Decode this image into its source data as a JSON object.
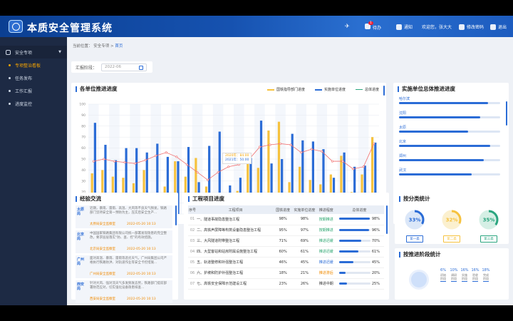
{
  "header": {
    "title": "本质安全管理系统",
    "todo": "待办",
    "todo_badge": "1",
    "notice": "通知",
    "welcome": "欢迎您，张大大",
    "change_password": "修改密码",
    "logout": "退出"
  },
  "sidebar": {
    "group": "安全专项",
    "items": [
      "专项整治看板",
      "任务发布",
      "工作汇报",
      "进度监控"
    ]
  },
  "breadcrumb": {
    "label": "当前位置：",
    "path": "安全专项 > ",
    "current": "首页"
  },
  "filter": {
    "label": "汇报阶段：",
    "placeholder": "2022-06"
  },
  "progress_panel": {
    "title": "各单位推进进度",
    "tooltip_line1": "2020年：84.00",
    "tooltip_line2": "2021年：50.00"
  },
  "chart_data": {
    "type": "bar",
    "categories": [
      "1",
      "2",
      "3",
      "4",
      "5",
      "6",
      "7",
      "8",
      "9",
      "10",
      "11",
      "12",
      "13",
      "14",
      "15",
      "16",
      "17",
      "18",
      "19",
      "20",
      "21",
      "22",
      "23",
      "24",
      "25",
      "26",
      "27",
      "28"
    ],
    "series": [
      {
        "name": "国铁指导部门进度",
        "type": "bar",
        "color": "#f6c23e",
        "values": [
          37,
          40,
          34,
          33,
          28,
          40,
          12,
          25,
          48,
          34,
          51,
          25,
          16,
          4,
          21,
          52,
          42,
          76,
          84,
          29,
          43,
          31,
          27,
          36,
          53,
          20,
          36,
          70
        ]
      },
      {
        "name": "实施单位进度",
        "type": "bar",
        "color": "#2b6cd6",
        "values": [
          83,
          63,
          49,
          60,
          60,
          56,
          64,
          52,
          48,
          61,
          29,
          62,
          75,
          26,
          33,
          51,
          85,
          46,
          50,
          73,
          67,
          66,
          59,
          33,
          56,
          43,
          44,
          65
        ]
      },
      {
        "name": "总体进度",
        "type": "line",
        "color": "#f06e6e",
        "values": [
          48,
          50,
          48,
          47,
          46,
          49,
          53,
          56,
          52,
          45,
          38,
          31,
          38,
          43,
          45,
          50,
          61,
          63,
          64,
          63,
          56,
          59,
          57,
          48,
          48,
          41,
          43,
          64
        ]
      }
    ],
    "ylim": [
      0,
      100
    ],
    "grid": true,
    "legend_position": "top-right"
  },
  "rank_panel": {
    "title": "实施单位总体推进进度",
    "items": [
      {
        "name": "哈尔滨",
        "value": 0.88
      },
      {
        "name": "沈阳",
        "value": 0.8
      },
      {
        "name": "太原",
        "value": 0.68
      },
      {
        "name": "北京",
        "value": 0.9
      },
      {
        "name": "郑州",
        "value": 0.84
      },
      {
        "name": "武汉",
        "value": 0.72
      }
    ]
  },
  "experience_panel": {
    "title": "经验交流",
    "items": [
      {
        "tag": "太原局",
        "text": "近期，暴雨、雷雨、高温、大风等不良天气频发，铁路部门坚持安全第一预防为主，压实后安全生产...",
        "source": "太原局安全监察室",
        "date": "2022-05-20 10:13"
      },
      {
        "tag": "北京局",
        "text": "中国国家铁路集团有限公司统一部署发现隐患的完全整改，要求层层落实“防、查、控”的有效措施。",
        "source": "北京局安全监察室",
        "date": "2022-05-20 10:13"
      },
      {
        "tag": "广州局",
        "text": "面对高温、暴雨、雷雨等恶劣天气，广州局集团公司严格执行铁路防洪、对轨道作业等安全卡控措施...",
        "source": "广州局安全监察室",
        "date": "2022-05-20 10:13"
      },
      {
        "tag": "西安局",
        "text": "针对大风、强对流天气多发频发态势，铁路部门提前部署防范应对，切实强化设备隐患排查...",
        "source": "西安局安全监察室",
        "date": "2022-05-20 10:13"
      }
    ]
  },
  "project_panel": {
    "title": "工程项目进度",
    "columns": [
      "序号",
      "工程项目",
      "国铁进度",
      "实施单位进度",
      "推进程度",
      "总体进度"
    ],
    "rows": [
      {
        "idx": "01",
        "name": "一、隧道事故隐患整治工程",
        "guotie": "98%",
        "unit": "98%",
        "status": "按期推进",
        "status_color": "#2aa56f",
        "overall": "98%",
        "value": 0.98
      },
      {
        "idx": "02",
        "name": "二、高铁声屏障等构筑设备隐患整治工程",
        "guotie": "95%",
        "unit": "97%",
        "status": "按期推进",
        "status_color": "#2aa56f",
        "overall": "96%",
        "value": 0.96
      },
      {
        "idx": "03",
        "name": "三、大风隧道附带整治工程",
        "guotie": "71%",
        "unit": "69%",
        "status": "推进迟缓",
        "status_color": "#2aa56f",
        "overall": "70%",
        "value": 0.7
      },
      {
        "idx": "04",
        "name": "四、大型客站和站房附属设施整治工程",
        "guotie": "60%",
        "unit": "61%",
        "status": "推进迟缓",
        "status_color": "#2aa56f",
        "overall": "61%",
        "value": 0.61
      },
      {
        "idx": "05",
        "name": "五、轨道整修和补强整治工程",
        "guotie": "46%",
        "unit": "45%",
        "status": "推进迟缓",
        "status_color": "#2b6cd6",
        "overall": "45%",
        "value": 0.45
      },
      {
        "idx": "06",
        "name": "六、护坡和防护补强整治工程",
        "guotie": "18%",
        "unit": "21%",
        "status": "推进滞后",
        "status_color": "#f08a00",
        "overall": "20%",
        "value": 0.2
      },
      {
        "idx": "07",
        "name": "七、高铁安全保障示范建设工程",
        "guotie": "23%",
        "unit": "26%",
        "status": "推进中期",
        "status_color": "#333333",
        "overall": "25%",
        "value": 0.25
      }
    ]
  },
  "category_panel": {
    "title": "按分类统计",
    "rings": [
      {
        "value_label": "33%",
        "value": 0.33,
        "label": "第一类",
        "color": "#2b6cd6",
        "track": "#dbe7f8"
      },
      {
        "value_label": "32%",
        "value": 0.32,
        "label": "第二类",
        "color": "#f6c23e",
        "track": "#fbf0cf"
      },
      {
        "value_label": "35%",
        "value": 0.35,
        "label": "第三类",
        "color": "#2aa57f",
        "track": "#d5efe5"
      }
    ]
  },
  "stage_panel": {
    "title": "按推进阶段统计",
    "stages": [
      {
        "value": "6%",
        "name": "初始 阶段"
      },
      {
        "value": "10%",
        "name": "调研 阶段"
      },
      {
        "value": "16%",
        "name": "实施 阶段"
      },
      {
        "value": "16%",
        "name": "验收 阶段"
      },
      {
        "value": "18%",
        "name": "完成 阶段"
      }
    ]
  }
}
